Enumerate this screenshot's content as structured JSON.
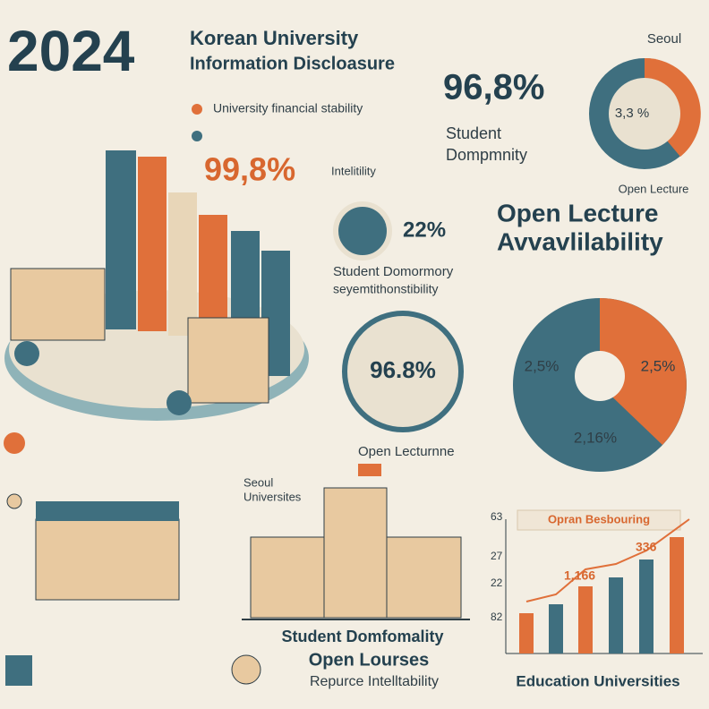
{
  "header": {
    "year": "2024",
    "title": [
      "Korean University",
      "Information Discloasure"
    ]
  },
  "legend": [
    "University financial stability"
  ],
  "stat_left": {
    "value": "99,8%",
    "label": "Intelitility"
  },
  "stat_top": {
    "value": "96,8%",
    "label": [
      "Student",
      "Dompmnity"
    ]
  },
  "pie_top": {
    "title": "Seoul",
    "label": "3,3 %"
  },
  "open_lecture": {
    "caption": "Open Lecture",
    "title": [
      "Open Lecture",
      "Avvavlilability"
    ]
  },
  "icon_stat": {
    "value": "22%",
    "label": [
      "Student Domormory",
      "seyemtithonstibility"
    ]
  },
  "circle_stat": "96.8%",
  "donut": [
    "2,5%",
    "2,5%",
    "2,16%"
  ],
  "mid": {
    "caption": "Open Lecturnne",
    "seoul": [
      "Seoul",
      "Universites"
    ]
  },
  "bottom": [
    "Student Domfomality",
    "Open Lourses",
    "Repurce Intelltability"
  ],
  "bar_panel": {
    "title": "Opran Besbouring",
    "labels": [
      "1,166",
      "336"
    ],
    "axis": [
      "63",
      "27",
      "22",
      "82"
    ],
    "footer": "Education Universities"
  }
}
